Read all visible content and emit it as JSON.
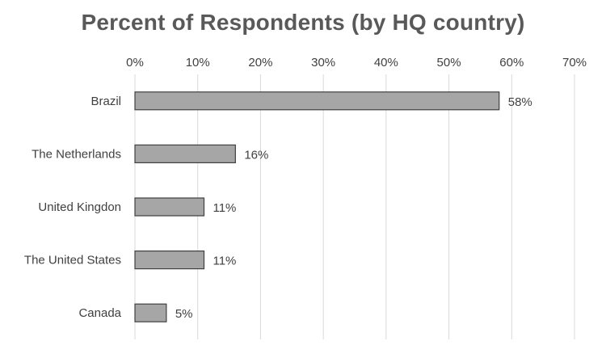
{
  "chart_data": {
    "type": "bar",
    "orientation": "horizontal",
    "title": "Percent of Respondents (by HQ country)",
    "categories": [
      "Brazil",
      "The Netherlands",
      "United Kingdon",
      "The United States",
      "Canada"
    ],
    "values": [
      58,
      16,
      11,
      11,
      5
    ],
    "data_labels": [
      "58%",
      "16%",
      "11%",
      "11%",
      "5%"
    ],
    "xlim": [
      0,
      70
    ],
    "x_ticks": [
      0,
      10,
      20,
      30,
      40,
      50,
      60,
      70
    ],
    "x_tick_labels": [
      "0%",
      "10%",
      "20%",
      "30%",
      "40%",
      "50%",
      "60%",
      "70%"
    ],
    "x_axis_position": "top",
    "grid": true,
    "legend": "none",
    "bar_color": "#a6a6a6",
    "bar_border_color": "#404040",
    "grid_color": "#d9d9d9"
  }
}
